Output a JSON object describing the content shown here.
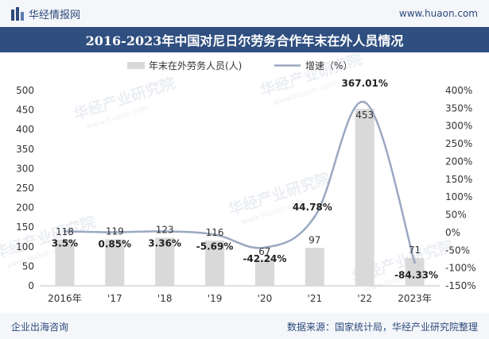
{
  "header": {
    "brand_name": "华经情报网",
    "site_url": "www.huaon.com",
    "title": "2016-2023年中国对尼日尔劳务合作年末在外人员情况"
  },
  "footer": {
    "left": "企业出海咨询",
    "right": "数据来源：国家统计局，华经产业研究院整理"
  },
  "watermark": {
    "text": "华经产业研究院",
    "url": "www.huaon.com"
  },
  "colors": {
    "bar": "#d9d9d9",
    "line": "#9aa8c2",
    "title_bg": "#2f4f80",
    "brand": "#2c4a7a"
  },
  "chart_data": {
    "type": "bar+line",
    "categories": [
      "2016年",
      "'17",
      "'18",
      "'19",
      "'20",
      "'21",
      "'22",
      "2023年"
    ],
    "series": [
      {
        "name": "年末在外劳务人员(人)",
        "type": "bar",
        "axis": "left",
        "values": [
          118,
          119,
          123,
          116,
          67,
          97,
          453,
          71
        ],
        "labels": [
          "118",
          "119",
          "123",
          "116",
          "67",
          "97",
          "453",
          "71"
        ]
      },
      {
        "name": "增速（%）",
        "type": "line",
        "axis": "right",
        "values": [
          3.5,
          0.85,
          3.36,
          -5.69,
          -42.24,
          44.78,
          367.01,
          -84.33
        ],
        "labels": [
          "3.5%",
          "0.85%",
          "3.36%",
          "-5.69%",
          "-42.24%",
          "44.78%",
          "367.01%",
          "-84.33%"
        ]
      }
    ],
    "y_left": {
      "range": [
        0,
        500
      ],
      "ticks": [
        0,
        50,
        100,
        150,
        200,
        250,
        300,
        350,
        400,
        450,
        500
      ]
    },
    "y_right": {
      "range": [
        -150,
        400
      ],
      "ticks": [
        "-150%",
        "-100%",
        "-50%",
        "0%",
        "50%",
        "100%",
        "150%",
        "200%",
        "250%",
        "300%",
        "350%",
        "400%"
      ],
      "tick_values": [
        -150,
        -100,
        -50,
        0,
        50,
        100,
        150,
        200,
        250,
        300,
        350,
        400
      ]
    },
    "legend": {
      "position": "top-center",
      "bar_label": "年末在外劳务人员(人)",
      "line_label": "增速（%）"
    },
    "grid": false
  }
}
